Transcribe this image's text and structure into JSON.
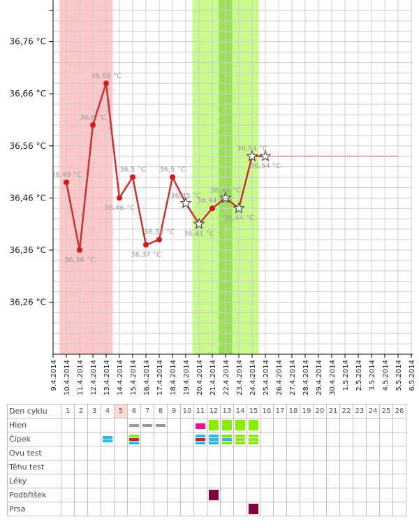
{
  "chart_data": {
    "type": "line",
    "ylim": [
      36.16,
      36.84
    ],
    "yticks": [
      {
        "value": 36.26,
        "label": "36,26 °C"
      },
      {
        "value": 36.36,
        "label": "36,36 °C"
      },
      {
        "value": 36.46,
        "label": "36,46 °C"
      },
      {
        "value": 36.56,
        "label": "36,56 °C"
      },
      {
        "value": 36.66,
        "label": "36,66 °C"
      },
      {
        "value": 36.76,
        "label": "36,76 °C"
      }
    ],
    "x_dates": [
      "9.4.2014",
      "10.4.2014",
      "11.4.2014",
      "12.4.2014",
      "13.4.2014",
      "14.4.2014",
      "15.4.2014",
      "16.4.2014",
      "17.4.2014",
      "18.4.2014",
      "19.4.2014",
      "20.4.2014",
      "21.4.2014",
      "22.4.2014",
      "23.4.2014",
      "24.4.2014",
      "25.4.2014",
      "26.4.2014",
      "27.4.2014",
      "28.4.2014",
      "29.4.2014",
      "30.4.2014",
      "1.5.2014",
      "2.5.2014",
      "3.5.2014",
      "4.5.2014",
      "5.5.2014",
      "6.5.2014"
    ],
    "points": [
      {
        "date": "10.4.2014",
        "value": 36.49,
        "label": "36,49 °C",
        "marker": "dot"
      },
      {
        "date": "11.4.2014",
        "value": 36.36,
        "label": "36,36 °C",
        "marker": "dot"
      },
      {
        "date": "12.4.2014",
        "value": 36.6,
        "label": "36,6 °C",
        "marker": "dot"
      },
      {
        "date": "13.4.2014",
        "value": 36.68,
        "label": "36,68 °C",
        "marker": "dot"
      },
      {
        "date": "14.4.2014",
        "value": 36.46,
        "label": "36,46 °C",
        "marker": "dot"
      },
      {
        "date": "15.4.2014",
        "value": 36.5,
        "label": "36,5 °C",
        "marker": "dot"
      },
      {
        "date": "16.4.2014",
        "value": 36.37,
        "label": "36,37 °C",
        "marker": "dot"
      },
      {
        "date": "17.4.2014",
        "value": 36.38,
        "label": "36,38 °C",
        "marker": "dot"
      },
      {
        "date": "18.4.2014",
        "value": 36.5,
        "label": "36,5 °C",
        "marker": "dot"
      },
      {
        "date": "19.4.2014",
        "value": 36.45,
        "label": "36,45 °C",
        "marker": "star"
      },
      {
        "date": "20.4.2014",
        "value": 36.41,
        "label": "36,41 °C",
        "marker": "star"
      },
      {
        "date": "21.4.2014",
        "value": 36.44,
        "label": "36,44 °C",
        "marker": "dot"
      },
      {
        "date": "22.4.2014",
        "value": 36.46,
        "label": "36,46 °C",
        "marker": "star"
      },
      {
        "date": "23.4.2014",
        "value": 36.44,
        "label": "36,44 °C",
        "marker": "star"
      },
      {
        "date": "24.4.2014",
        "value": 36.54,
        "label": "36,54 °C",
        "marker": "star"
      },
      {
        "date": "25.4.2014",
        "value": 36.54,
        "label": "36,54 °C",
        "marker": "star"
      }
    ],
    "cover_line": {
      "value": 36.54,
      "from": "25.4.2014",
      "to": "5.5.2014",
      "color": "#cc3333"
    },
    "bands": [
      {
        "from": 0.5,
        "to": 4.5,
        "color": "#ffc8c8"
      },
      {
        "from": 10.5,
        "to": 15.5,
        "color": "#c8fa8c"
      },
      {
        "from": 12.5,
        "to": 13.5,
        "color": "#9be05a"
      }
    ],
    "line_color": "#c83232",
    "grid": true
  },
  "table": {
    "rows": [
      "Den cyklu",
      "Hlen",
      "Čípek",
      "Ovu test",
      "Těhu test",
      "Léky",
      "Podbřišek",
      "Prsa"
    ],
    "days": [
      "1",
      "2",
      "3",
      "4",
      "5",
      "6",
      "7",
      "8",
      "9",
      "10",
      "11",
      "12",
      "13",
      "14",
      "15",
      "16",
      "17",
      "18",
      "19",
      "20",
      "21",
      "22",
      "23",
      "24",
      "25",
      "26"
    ],
    "highlight_day": 5,
    "marks": [
      {
        "row": 1,
        "day": 6,
        "type": "thin",
        "colors": [
          "#999999"
        ]
      },
      {
        "row": 1,
        "day": 7,
        "type": "thin",
        "colors": [
          "#999999"
        ]
      },
      {
        "row": 1,
        "day": 8,
        "type": "thin",
        "colors": [
          "#999999"
        ]
      },
      {
        "row": 1,
        "day": 11,
        "type": "block",
        "colors": [
          "#ee1188"
        ]
      },
      {
        "row": 1,
        "day": 12,
        "type": "full",
        "colors": [
          "#88ee00"
        ]
      },
      {
        "row": 1,
        "day": 13,
        "type": "full",
        "colors": [
          "#88ee00"
        ]
      },
      {
        "row": 1,
        "day": 14,
        "type": "full",
        "colors": [
          "#88ee00"
        ]
      },
      {
        "row": 1,
        "day": 15,
        "type": "full",
        "colors": [
          "#88ee00"
        ]
      },
      {
        "row": 2,
        "day": 4,
        "type": "stack",
        "colors": [
          "#22bbee",
          "#22bbee"
        ]
      },
      {
        "row": 2,
        "day": 6,
        "type": "stack",
        "colors": [
          "#88ee00",
          "#ee1111",
          "#22bbee"
        ]
      },
      {
        "row": 2,
        "day": 11,
        "type": "stack",
        "colors": [
          "#22bbee",
          "#ee1111",
          "#22bbee"
        ]
      },
      {
        "row": 2,
        "day": 12,
        "type": "stack",
        "colors": [
          "#22bbee",
          "#22bbee",
          "#22bbee"
        ]
      },
      {
        "row": 2,
        "day": 13,
        "type": "stack",
        "colors": [
          "#88ee00",
          "#22bbee",
          "#88ee00"
        ]
      },
      {
        "row": 2,
        "day": 14,
        "type": "stack",
        "colors": [
          "#88ee00",
          "#88ee00",
          "#88ee00"
        ]
      },
      {
        "row": 2,
        "day": 15,
        "type": "stack",
        "colors": [
          "#88ee00",
          "#88ee00",
          "#88ee00"
        ]
      },
      {
        "row": 6,
        "day": 12,
        "type": "full",
        "colors": [
          "#800040"
        ]
      },
      {
        "row": 7,
        "day": 15,
        "type": "full",
        "colors": [
          "#800040"
        ]
      }
    ]
  }
}
